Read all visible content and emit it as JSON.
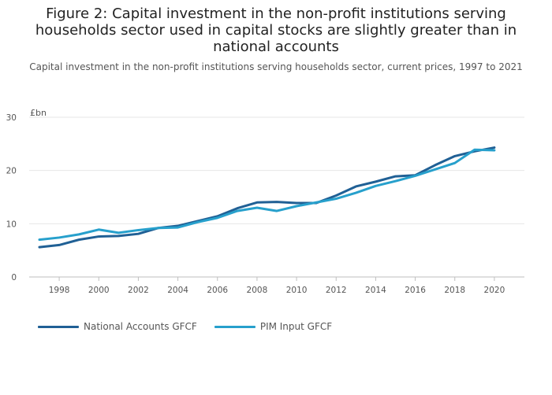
{
  "title": "Figure 2: Capital investment in the non-profit institutions serving households sector used in capital stocks are slightly greater than in national accounts",
  "subtitle": "Capital investment in the non-profit institutions serving households sector, current prices, 1997 to 2021",
  "colors": {
    "national": "#206095",
    "pim": "#27a0cc",
    "grid": "#e6e6e6",
    "axis": "#bfbfbf"
  },
  "chart_data": {
    "type": "line",
    "title": "Figure 2: Capital investment in the non-profit institutions serving households sector used in capital stocks are slightly greater than in national accounts",
    "subtitle": "Capital investment in the non-profit institutions serving households sector, current prices, 1997 to 2021",
    "xlabel": "",
    "ylabel": "£bn",
    "xlim": [
      1997,
      2021
    ],
    "ylim": [
      0,
      30
    ],
    "yticks": [
      0,
      10,
      20,
      30
    ],
    "xticks": [
      1998,
      2000,
      2002,
      2004,
      2006,
      2008,
      2010,
      2012,
      2014,
      2016,
      2018,
      2020
    ],
    "grid": true,
    "legend_position": "bottom-left",
    "x": [
      1997,
      1998,
      1999,
      2000,
      2001,
      2002,
      2003,
      2004,
      2005,
      2006,
      2007,
      2008,
      2009,
      2010,
      2011,
      2012,
      2013,
      2014,
      2015,
      2016,
      2017,
      2018,
      2019,
      2020,
      2021
    ],
    "series": [
      {
        "name": "National Accounts GFCF",
        "color": "#206095",
        "values": [
          5.6,
          6.0,
          7.0,
          7.6,
          7.7,
          8.1,
          9.2,
          9.6,
          10.5,
          11.4,
          12.9,
          14.0,
          14.1,
          13.9,
          13.9,
          15.3,
          17.0,
          17.9,
          18.9,
          19.1,
          21.0,
          22.7,
          23.6,
          24.3,
          null
        ]
      },
      {
        "name": "PIM Input GFCF",
        "color": "#27a0cc",
        "values": [
          7.0,
          7.4,
          8.0,
          8.9,
          8.3,
          8.8,
          9.2,
          9.3,
          10.3,
          11.1,
          12.4,
          13.0,
          12.4,
          13.3,
          14.0,
          14.7,
          15.8,
          17.1,
          18.0,
          19.0,
          20.2,
          21.4,
          23.9,
          23.8,
          null
        ]
      }
    ]
  }
}
